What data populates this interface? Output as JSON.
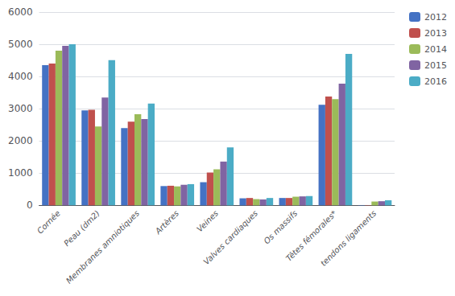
{
  "chart_data": {
    "type": "bar",
    "categories": [
      "Cornée",
      "Peau (dm2)",
      "Membranes amniotiques",
      "Artères",
      "Veines",
      "Valves cardiaques",
      "Os massifs",
      "Têtes fémorales*",
      "tendons ligaments"
    ],
    "series": [
      {
        "name": "2012",
        "color": "#4472c4",
        "values": [
          4350,
          2950,
          2400,
          600,
          720,
          220,
          230,
          3120,
          10
        ]
      },
      {
        "name": "2013",
        "color": "#c0504d",
        "values": [
          4400,
          2970,
          2600,
          610,
          1020,
          230,
          230,
          3380,
          10
        ]
      },
      {
        "name": "2014",
        "color": "#9bbb59",
        "values": [
          4800,
          2450,
          2830,
          590,
          1120,
          195,
          270,
          3300,
          120
        ]
      },
      {
        "name": "2015",
        "color": "#8064a2",
        "values": [
          4950,
          3350,
          2680,
          640,
          1360,
          185,
          280,
          3780,
          130
        ]
      },
      {
        "name": "2016",
        "color": "#4bacc6",
        "values": [
          5000,
          4510,
          3160,
          660,
          1800,
          230,
          290,
          4700,
          160
        ]
      }
    ],
    "ylim": [
      0,
      6000
    ],
    "yticks": [
      0,
      1000,
      2000,
      3000,
      4000,
      5000,
      6000
    ],
    "grid": true,
    "legend": "upper right"
  }
}
